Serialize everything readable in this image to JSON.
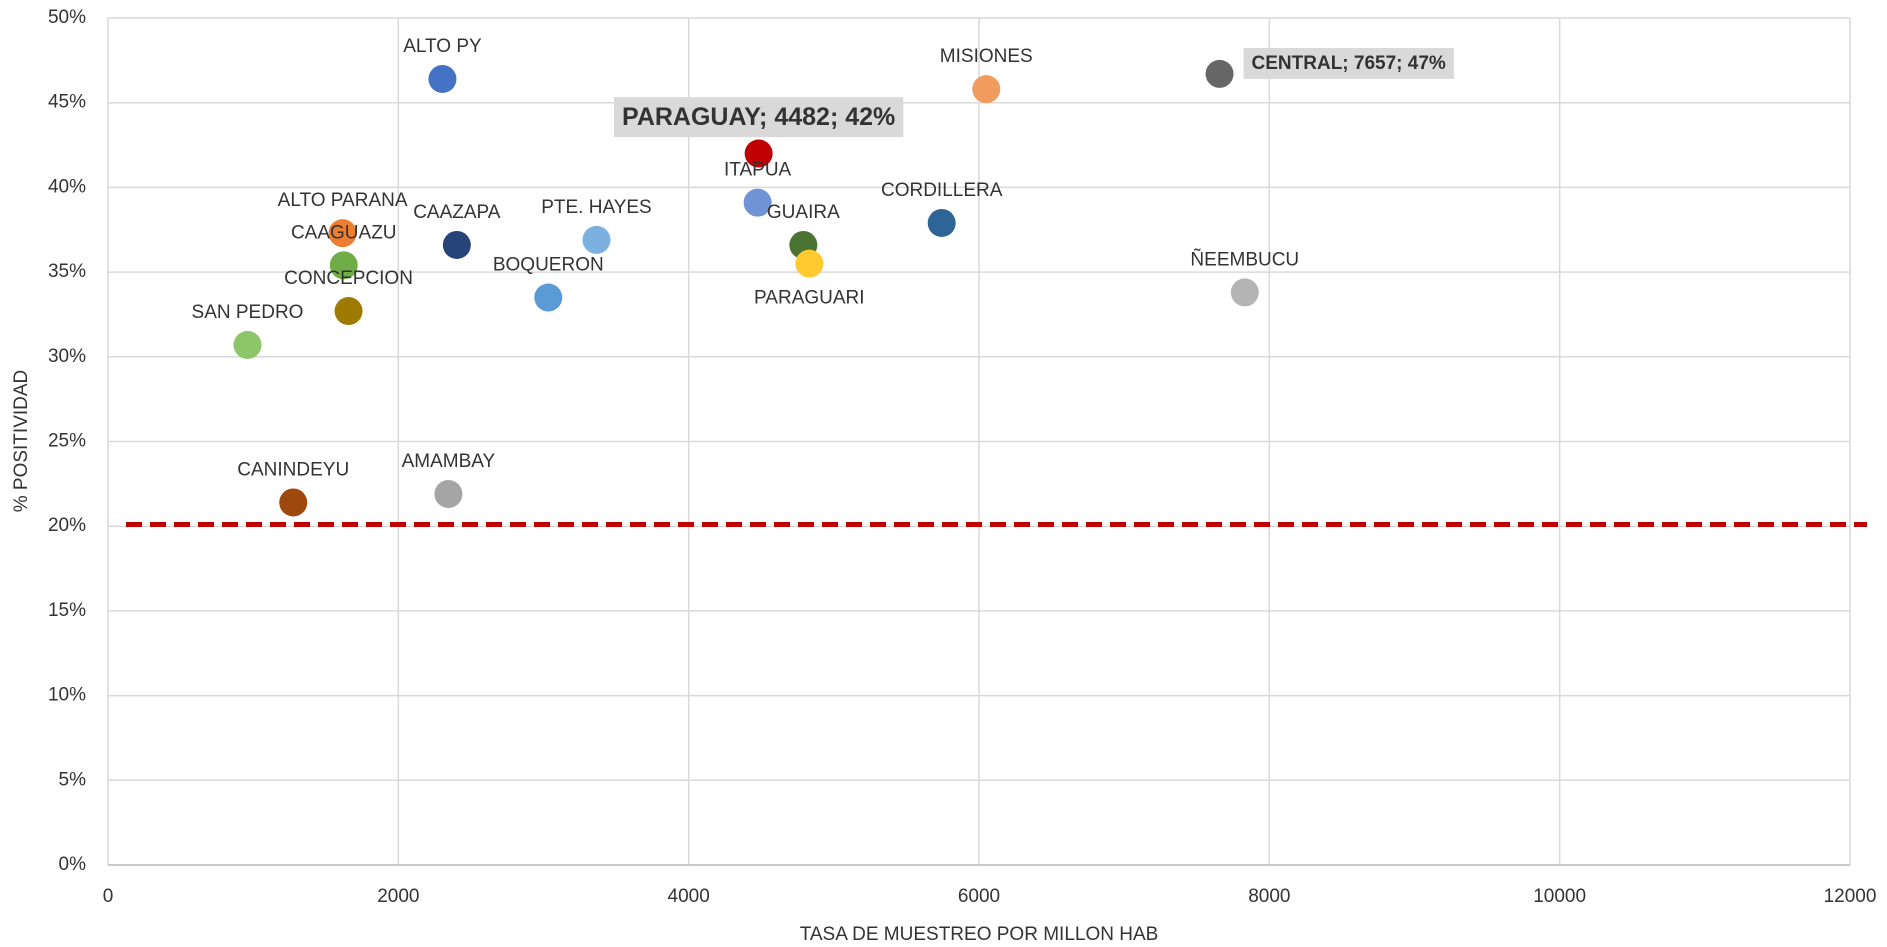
{
  "chart_data": {
    "type": "scatter",
    "x_label": "TASA DE MUESTREO POR MILLON HAB",
    "y_label": "% POSITIVIDAD",
    "xlim": [
      0,
      12000
    ],
    "xticks": [
      0,
      2000,
      4000,
      6000,
      8000,
      10000,
      12000
    ],
    "ylim": [
      0,
      50
    ],
    "yticks": [
      {
        "value": 0,
        "label": "0%"
      },
      {
        "value": 5,
        "label": "5%"
      },
      {
        "value": 10,
        "label": "10%"
      },
      {
        "value": 15,
        "label": "15%"
      },
      {
        "value": 20,
        "label": "20%"
      },
      {
        "value": 25,
        "label": "25%"
      },
      {
        "value": 30,
        "label": "30%"
      },
      {
        "value": 35,
        "label": "35%"
      },
      {
        "value": 40,
        "label": "40%"
      },
      {
        "value": 45,
        "label": "45%"
      },
      {
        "value": 50,
        "label": "50%"
      }
    ],
    "grid": true,
    "reference_line": {
      "value": 20.1,
      "color": "#c00000"
    },
    "points": [
      {
        "label": "ALTO PY",
        "x": 2304,
        "y": 46.4,
        "color": "#4472c4"
      },
      {
        "label": "MISIONES",
        "x": 6050,
        "y": 45.8,
        "color": "#f19b5f"
      },
      {
        "label": "CENTRAL; 7657; 47%",
        "x": 7657,
        "y": 46.7,
        "color": "#666666"
      },
      {
        "label": "PARAGUAY; 4482; 42%",
        "x": 4482,
        "y": 42.0,
        "color": "#c00000"
      },
      {
        "label": "ITAPUA",
        "x": 4475,
        "y": 39.1,
        "color": "#6f93d4"
      },
      {
        "label": "CORDILLERA",
        "x": 5743,
        "y": 37.9,
        "color": "#2e6597"
      },
      {
        "label": "GUAIRA",
        "x": 4790,
        "y": 36.6,
        "color": "#4b7332"
      },
      {
        "label": "PARAGUARI",
        "x": 4831,
        "y": 35.5,
        "color": "#ffc930"
      },
      {
        "label": "ÑEEMBUCU",
        "x": 7831,
        "y": 33.8,
        "color": "#b4b4b4"
      },
      {
        "label": "PTE. HAYES",
        "x": 3365,
        "y": 36.9,
        "color": "#7cb0e0"
      },
      {
        "label": "BOQUERON",
        "x": 3033,
        "y": 33.5,
        "color": "#5b9bd5"
      },
      {
        "label": "CAAZAPA",
        "x": 2403,
        "y": 36.6,
        "color": "#264478"
      },
      {
        "label": "ALTO PARANA",
        "x": 1616,
        "y": 37.3,
        "color": "#ed7d31"
      },
      {
        "label": "CAAGUAZU",
        "x": 1624,
        "y": 35.4,
        "color": "#70ad47"
      },
      {
        "label": "CONCEPCION",
        "x": 1657,
        "y": 32.7,
        "color": "#9e7a00"
      },
      {
        "label": "SAN PEDRO",
        "x": 961,
        "y": 30.7,
        "color": "#8cc56a"
      },
      {
        "label": "CANINDEYU",
        "x": 1276,
        "y": 21.4,
        "color": "#9e480e"
      },
      {
        "label": "AMAMBAY",
        "x": 2345,
        "y": 21.9,
        "color": "#a5a5a5"
      }
    ]
  }
}
